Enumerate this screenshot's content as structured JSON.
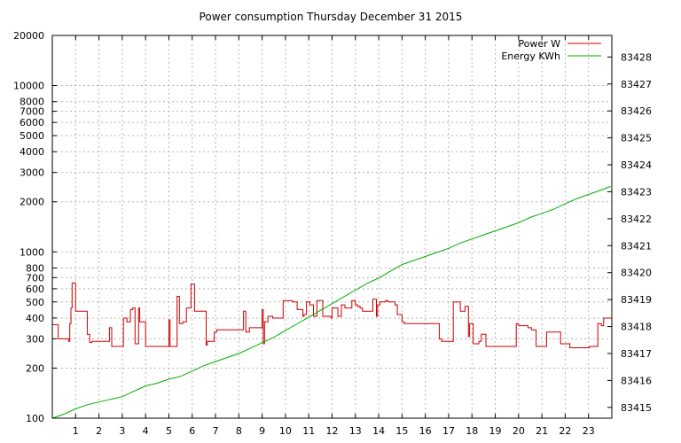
{
  "chart_data": {
    "type": "line",
    "title": "Power consumption Thursday December 31 2015",
    "xlabel": "",
    "ylabel": "",
    "y2label": "",
    "grid": true,
    "legend_position": "top-right",
    "x_range": [
      0,
      24
    ],
    "x_ticks": [
      1,
      2,
      3,
      4,
      5,
      6,
      7,
      8,
      9,
      10,
      11,
      12,
      13,
      14,
      15,
      16,
      17,
      18,
      19,
      20,
      21,
      22,
      23
    ],
    "y_scale": "log",
    "y_range": [
      100,
      20000
    ],
    "y_ticks": [
      100,
      200,
      300,
      400,
      500,
      600,
      700,
      800,
      1000,
      2000,
      3000,
      4000,
      5000,
      6000,
      7000,
      8000,
      10000,
      20000
    ],
    "y2_range": [
      83414.6,
      83428.8
    ],
    "y2_ticks": [
      83415,
      83416,
      83417,
      83418,
      83419,
      83420,
      83421,
      83422,
      83423,
      83424,
      83425,
      83426,
      83427,
      83428
    ],
    "series": [
      {
        "name": "Power W",
        "color": "#cc0000",
        "axis": "left",
        "step": true,
        "x": [
          0.0,
          0.25,
          0.7,
          0.75,
          0.8,
          0.85,
          1.0,
          1.3,
          1.5,
          1.6,
          1.7,
          2.4,
          2.45,
          2.55,
          3.0,
          3.05,
          3.2,
          3.35,
          3.45,
          3.55,
          3.7,
          3.75,
          4.0,
          4.1,
          4.5,
          4.6,
          5.0,
          5.05,
          5.35,
          5.45,
          5.6,
          5.75,
          5.95,
          6.1,
          6.2,
          6.6,
          6.65,
          6.95,
          7.05,
          7.5,
          7.95,
          8.2,
          8.3,
          8.45,
          9.0,
          9.05,
          9.1,
          9.25,
          9.45,
          9.65,
          9.9,
          10.0,
          10.3,
          10.5,
          10.75,
          10.8,
          10.9,
          11.05,
          11.2,
          11.35,
          11.6,
          11.95,
          12.0,
          12.25,
          12.4,
          12.55,
          12.85,
          13.0,
          13.1,
          13.2,
          13.3,
          13.75,
          13.9,
          13.95,
          14.05,
          14.3,
          14.4,
          14.7,
          14.8,
          15.0,
          15.1,
          15.3,
          16.5,
          16.6,
          16.7,
          16.75,
          17.0,
          17.2,
          17.5,
          17.7,
          17.85,
          17.9,
          18.05,
          18.3,
          18.4,
          18.6,
          18.8,
          19.0,
          19.2,
          19.9,
          20.0,
          20.15,
          20.4,
          20.55,
          20.75,
          21.0,
          21.2,
          21.5,
          21.8,
          22.0,
          22.2,
          22.4,
          22.7,
          22.95,
          23.05,
          23.4,
          23.55,
          23.65
        ],
        "y": [
          365,
          300,
          290,
          370,
          460,
          650,
          440,
          440,
          320,
          285,
          290,
          290,
          350,
          270,
          270,
          400,
          380,
          450,
          460,
          280,
          460,
          380,
          270,
          270,
          270,
          270,
          390,
          270,
          540,
          370,
          380,
          460,
          640,
          440,
          440,
          275,
          290,
          330,
          340,
          340,
          340,
          440,
          330,
          350,
          450,
          280,
          380,
          410,
          400,
          400,
          510,
          510,
          500,
          450,
          410,
          420,
          500,
          480,
          410,
          510,
          410,
          400,
          460,
          410,
          480,
          460,
          510,
          480,
          470,
          460,
          440,
          520,
          410,
          480,
          500,
          510,
          500,
          480,
          420,
          380,
          370,
          370,
          370,
          300,
          290,
          290,
          290,
          500,
          440,
          470,
          310,
          370,
          280,
          290,
          320,
          270,
          270,
          270,
          270,
          370,
          360,
          360,
          350,
          340,
          270,
          270,
          330,
          330,
          280,
          280,
          265,
          265,
          265,
          265,
          270,
          370,
          360,
          400
        ]
      },
      {
        "name": "Energy KWh",
        "color": "#00aa00",
        "axis": "right",
        "step": false,
        "x": [
          0.0,
          0.5,
          1.0,
          1.5,
          2.0,
          2.5,
          3.0,
          3.5,
          4.0,
          4.5,
          5.0,
          5.5,
          6.0,
          6.5,
          7.0,
          7.5,
          8.0,
          8.5,
          9.0,
          9.5,
          10.0,
          10.5,
          11.0,
          11.5,
          12.0,
          12.5,
          13.0,
          13.5,
          14.0,
          14.5,
          15.0,
          15.5,
          16.0,
          16.5,
          17.0,
          17.5,
          18.0,
          18.5,
          19.0,
          19.5,
          20.0,
          20.5,
          21.0,
          21.5,
          22.0,
          22.5,
          23.0,
          23.5,
          23.95
        ],
        "y": [
          83414.6,
          83414.75,
          83414.95,
          83415.1,
          83415.2,
          83415.3,
          83415.4,
          83415.6,
          83415.8,
          83415.9,
          83416.05,
          83416.15,
          83416.35,
          83416.55,
          83416.7,
          83416.85,
          83417.0,
          83417.2,
          83417.4,
          83417.6,
          83417.85,
          83418.1,
          83418.35,
          83418.6,
          83418.85,
          83419.1,
          83419.35,
          83419.6,
          83419.8,
          83420.05,
          83420.3,
          83420.45,
          83420.6,
          83420.75,
          83420.9,
          83421.1,
          83421.25,
          83421.4,
          83421.55,
          83421.7,
          83421.85,
          83422.05,
          83422.2,
          83422.35,
          83422.55,
          83422.75,
          83422.9,
          83423.05,
          83423.2
        ]
      }
    ]
  }
}
